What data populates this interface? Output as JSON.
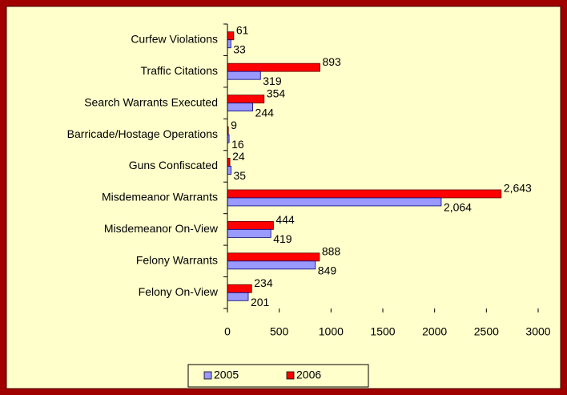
{
  "chart_data": {
    "type": "barh",
    "categories": [
      "Curfew Violations",
      "Traffic Citations",
      "Search Warrants Executed",
      "Barricade/Hostage Operations",
      "Guns Confiscated",
      "Misdemeanor Warrants",
      "Misdemeanor On-View",
      "Felony Warrants",
      "Felony On-View"
    ],
    "series": [
      {
        "name": "2005",
        "color": "#9999ff",
        "values": [
          33,
          319,
          244,
          16,
          35,
          2064,
          419,
          849,
          201
        ],
        "value_labels": [
          "33",
          "319",
          "244",
          "16",
          "35",
          "2,064",
          "419",
          "849",
          "201"
        ]
      },
      {
        "name": "2006",
        "color": "#ff0000",
        "values": [
          61,
          893,
          354,
          9,
          24,
          2643,
          444,
          888,
          234
        ],
        "value_labels": [
          "61",
          "893",
          "354",
          "9",
          "24",
          "2,643",
          "444",
          "888",
          "234"
        ]
      }
    ],
    "xlim": [
      0,
      3000
    ],
    "xticks": [
      0,
      500,
      1000,
      1500,
      2000,
      2500,
      3000
    ],
    "legend": "bottom"
  }
}
